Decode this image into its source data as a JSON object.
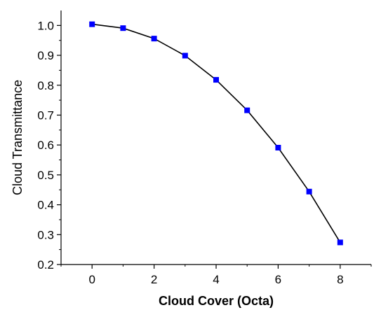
{
  "chart_data": {
    "type": "line",
    "title": "",
    "xlabel": "Cloud Cover (Octa)",
    "ylabel": "Cloud Transmittance",
    "xlim": [
      -1,
      9
    ],
    "ylim": [
      0.2,
      1.05
    ],
    "xticks": [
      0,
      2,
      4,
      6,
      8
    ],
    "xtick_labels": [
      "0",
      "2",
      "4",
      "6",
      "8"
    ],
    "yticks": [
      0.2,
      0.3,
      0.4,
      0.5,
      0.6,
      0.7,
      0.8,
      0.9,
      1.0
    ],
    "ytick_labels": [
      "0.2",
      "0.3",
      "0.4",
      "0.5",
      "0.6",
      "0.7",
      "0.8",
      "0.9",
      "1.0"
    ],
    "grid": false,
    "legend": "none",
    "series": [
      {
        "x": [
          0,
          1,
          2,
          3,
          4,
          5,
          6,
          7,
          8
        ],
        "y": [
          1.004,
          0.991,
          0.956,
          0.899,
          0.818,
          0.716,
          0.591,
          0.444,
          0.274
        ],
        "line_color": "#000000",
        "marker_color": "#0000ff",
        "marker": "square"
      }
    ]
  }
}
